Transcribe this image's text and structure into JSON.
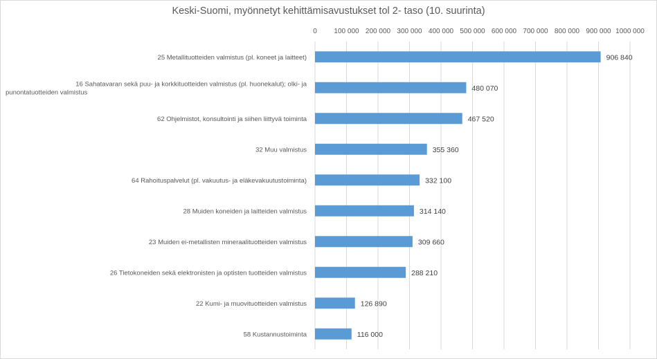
{
  "chart_data": {
    "type": "bar",
    "orientation": "horizontal",
    "title": "Keski-Suomi, myönnetyt kehittämisavustukset tol 2- taso (10. suurinta)",
    "categories": [
      "25  Metallituotteiden valmistus (pl. koneet ja laitteet)",
      "16  Sahatavaran sekä puu- ja korkkituotteiden valmistus (pl. huonekalut); olki- ja punontatuotteiden valmistus",
      "62  Ohjelmistot, konsultointi ja siihen liittyvä toiminta",
      "32  Muu valmistus",
      "64  Rahoituspalvelut (pl. vakuutus- ja eläkevakuutustoiminta)",
      "28  Muiden koneiden ja laitteiden valmistus",
      "23  Muiden ei-metallisten mineraalituotteiden valmistus",
      "26  Tietokoneiden sekä elektronisten ja optisten tuotteiden valmistus",
      "22  Kumi- ja muovituotteiden valmistus",
      "58  Kustannustoiminta"
    ],
    "values": [
      906840,
      480070,
      467520,
      355360,
      332100,
      314140,
      309660,
      288210,
      126890,
      116000
    ],
    "value_labels": [
      "906 840",
      "480 070",
      "467 520",
      "355 360",
      "332 100",
      "314 140",
      "309 660",
      "288 210",
      "126 890",
      "116 000"
    ],
    "x_ticks": [
      "0",
      "100 000",
      "200 000",
      "300 000",
      "400 000",
      "500 000",
      "600 000",
      "700 000",
      "800 000",
      "900 000",
      "1000 000"
    ],
    "xlim": [
      0,
      1000000
    ],
    "axis_position": "top",
    "grid": true,
    "bar_color": "#5b9bd5"
  }
}
